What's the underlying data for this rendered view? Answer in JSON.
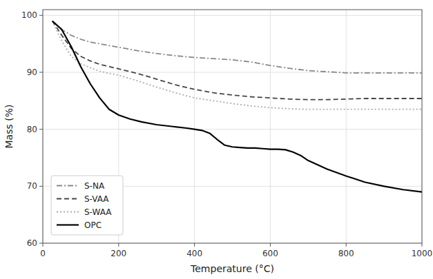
{
  "chart_data": {
    "type": "line",
    "x_label": "Temperature (°C)",
    "y_label": "Mass (%)",
    "series": [
      {
        "name": "S-NA",
        "color": "#888888",
        "line_style": "dashdot",
        "x": [
          25,
          50,
          75,
          100,
          125,
          150,
          175,
          200,
          250,
          300,
          350,
          400,
          450,
          500,
          550,
          600,
          650,
          700,
          750,
          800,
          850,
          900,
          950,
          1000
        ],
        "values": [
          99.0,
          97.5,
          96.5,
          95.8,
          95.3,
          95.0,
          94.7,
          94.4,
          93.8,
          93.3,
          92.9,
          92.6,
          92.4,
          92.2,
          91.8,
          91.2,
          90.7,
          90.3,
          90.1,
          89.9,
          89.9,
          89.9,
          89.9,
          89.9
        ]
      },
      {
        "name": "S-VAA",
        "color": "#444444",
        "line_style": "dashed",
        "x": [
          25,
          50,
          75,
          100,
          125,
          150,
          175,
          200,
          250,
          300,
          350,
          400,
          450,
          500,
          550,
          600,
          650,
          700,
          750,
          800,
          850,
          900,
          950,
          1000
        ],
        "values": [
          99.0,
          96.5,
          94.2,
          92.8,
          92.0,
          91.4,
          91.0,
          90.6,
          89.8,
          88.8,
          87.8,
          87.0,
          86.4,
          86.0,
          85.7,
          85.5,
          85.3,
          85.2,
          85.2,
          85.3,
          85.4,
          85.4,
          85.4,
          85.4
        ]
      },
      {
        "name": "S-WAA",
        "color": "#aaaaaa",
        "line_style": "dotted",
        "x": [
          25,
          50,
          75,
          100,
          125,
          150,
          175,
          200,
          250,
          300,
          350,
          400,
          450,
          500,
          550,
          600,
          650,
          700,
          750,
          800,
          850,
          900,
          950,
          1000
        ],
        "values": [
          99.0,
          95.5,
          92.8,
          91.5,
          90.8,
          90.2,
          89.8,
          89.5,
          88.5,
          87.4,
          86.4,
          85.5,
          85.0,
          84.5,
          84.1,
          83.8,
          83.6,
          83.5,
          83.5,
          83.5,
          83.5,
          83.5,
          83.5,
          83.5
        ]
      },
      {
        "name": "OPC",
        "color": "#000000",
        "line_style": "solid",
        "x": [
          25,
          50,
          75,
          100,
          125,
          150,
          175,
          200,
          230,
          260,
          300,
          340,
          380,
          400,
          420,
          440,
          460,
          480,
          500,
          520,
          540,
          560,
          580,
          600,
          620,
          640,
          660,
          680,
          700,
          750,
          800,
          850,
          900,
          950,
          1000
        ],
        "values": [
          99.0,
          97.5,
          94.5,
          91.0,
          88.0,
          85.5,
          83.5,
          82.5,
          81.8,
          81.3,
          80.8,
          80.5,
          80.2,
          80.0,
          79.8,
          79.3,
          78.2,
          77.2,
          76.9,
          76.8,
          76.7,
          76.7,
          76.6,
          76.5,
          76.5,
          76.4,
          76.0,
          75.4,
          74.5,
          73.0,
          71.8,
          70.7,
          70.0,
          69.4,
          69.0
        ]
      }
    ],
    "xlim": [
      0,
      1000
    ],
    "ylim": [
      60,
      101
    ],
    "xticks": [
      0,
      200,
      400,
      600,
      800,
      1000
    ],
    "yticks": [
      60,
      70,
      80,
      90,
      100
    ],
    "grid": true,
    "legend": "lower left"
  }
}
